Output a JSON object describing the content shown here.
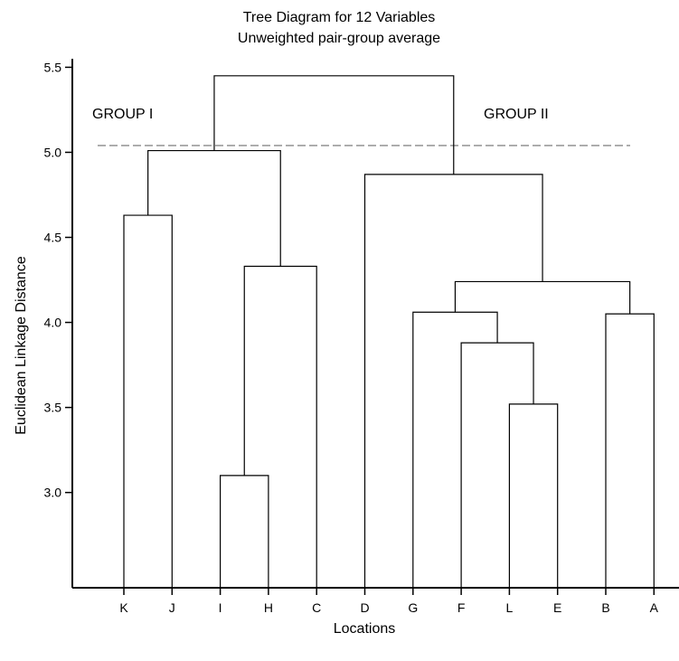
{
  "chart_data": {
    "type": "dendrogram",
    "title": "Tree Diagram for 12 Variables",
    "subtitle": "Unweighted pair-group  average",
    "xlabel": "Locations",
    "ylabel": "Euclidean Linkage Distance",
    "ylim": [
      2.44,
      5.55
    ],
    "yticks": [
      "3.0",
      "3.5",
      "4.0",
      "4.5",
      "5.0",
      "5.5"
    ],
    "leaves": [
      "K",
      "J",
      "I",
      "H",
      "C",
      "D",
      "G",
      "F",
      "L",
      "E",
      "B",
      "A"
    ],
    "merges": [
      {
        "left": "I",
        "right": "H",
        "height": 3.1
      },
      {
        "left": "L",
        "right": "E",
        "height": 3.52
      },
      {
        "left": "F",
        "right": "L+E",
        "height": 3.88
      },
      {
        "left": "B",
        "right": "A",
        "height": 4.05
      },
      {
        "left": "G",
        "right": "F+L+E",
        "height": 4.06
      },
      {
        "left": "G..E",
        "right": "B+A",
        "height": 4.24
      },
      {
        "left": "I+H",
        "right": "C",
        "height": 4.33
      },
      {
        "left": "K",
        "right": "J",
        "height": 4.63
      },
      {
        "left": "D",
        "right": "G..A",
        "height": 4.87
      },
      {
        "left": "K+J",
        "right": "I+H+C",
        "height": 5.01
      },
      {
        "left": "K..C",
        "right": "D..A",
        "height": 5.45
      }
    ],
    "cut_height": 5.04,
    "annotations": [
      "GROUP I",
      "GROUP II"
    ]
  }
}
